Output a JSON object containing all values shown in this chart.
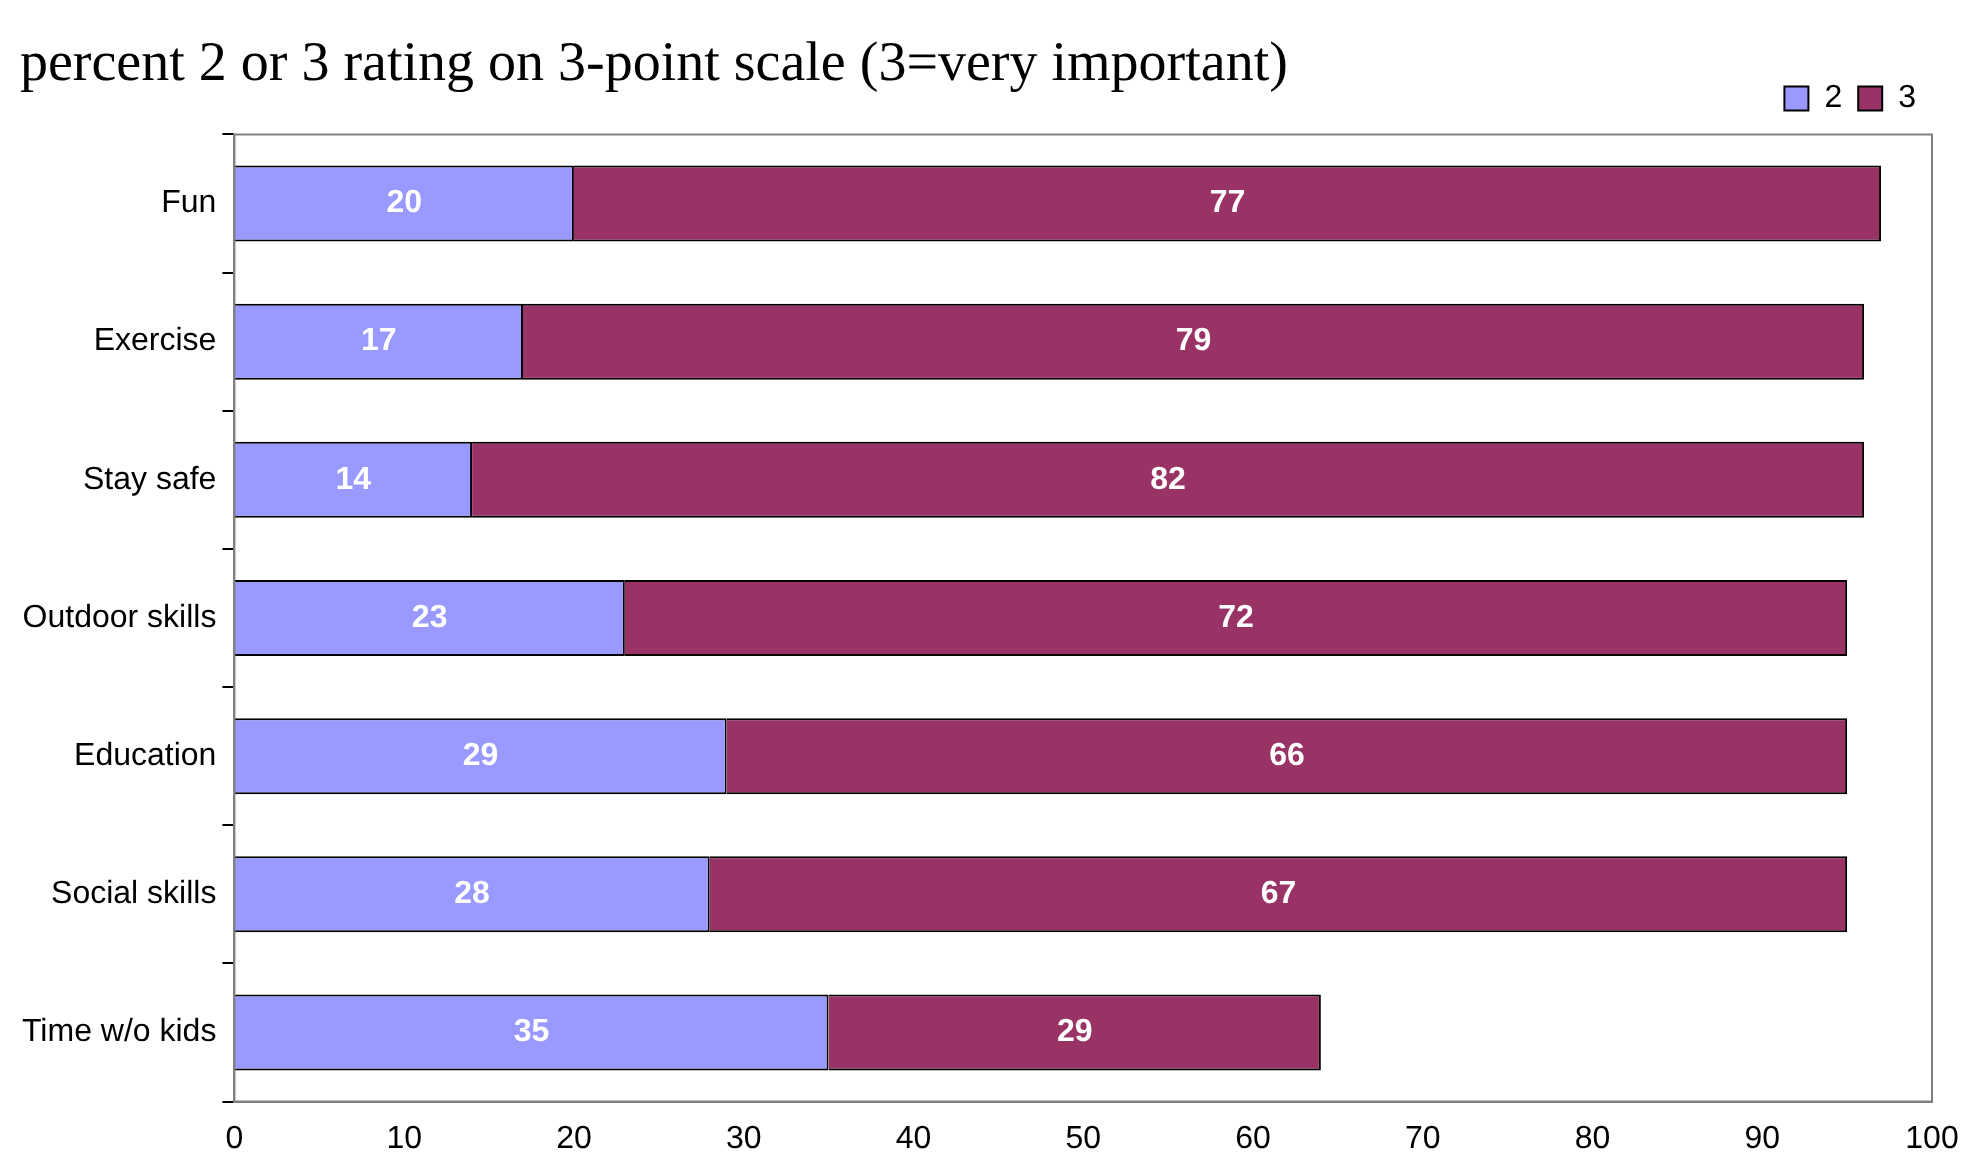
{
  "chart_data": {
    "type": "bar",
    "orientation": "horizontal",
    "stacked": true,
    "title": "percent 2 or 3 rating on 3-point scale (3=very important)",
    "categories": [
      "Fun",
      "Exercise",
      "Stay safe",
      "Outdoor skills",
      "Education",
      "Social skills",
      "Time w/o kids"
    ],
    "series": [
      {
        "name": "2",
        "color": "#9999ff",
        "values": [
          20,
          17,
          14,
          23,
          29,
          28,
          35
        ]
      },
      {
        "name": "3",
        "color": "#993366",
        "values": [
          77,
          79,
          82,
          72,
          66,
          67,
          29
        ]
      }
    ],
    "xlim": [
      0,
      100
    ],
    "xticks": [
      0,
      10,
      20,
      30,
      40,
      50,
      60,
      70,
      80,
      90,
      100
    ],
    "grid": false,
    "legend": "top right",
    "data_labels": true
  }
}
